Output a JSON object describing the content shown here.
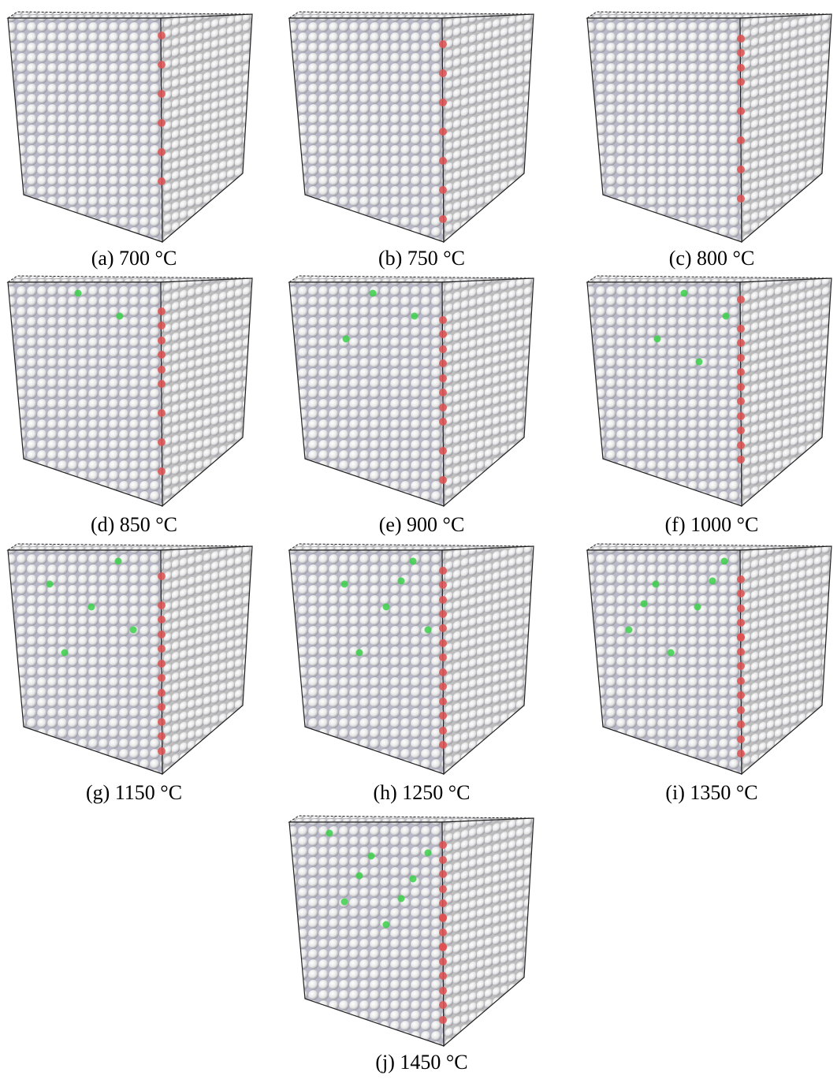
{
  "figure": {
    "panels": [
      {
        "caption": "(a) 700 °C"
      },
      {
        "caption": "(b) 750 °C"
      },
      {
        "caption": "(c) 800 °C"
      },
      {
        "caption": "(d) 850 °C"
      },
      {
        "caption": "(e) 900 °C"
      },
      {
        "caption": "(f) 1000 °C"
      },
      {
        "caption": "(g) 1150 °C"
      },
      {
        "caption": "(h) 1250 °C"
      },
      {
        "caption": "(i) 1350 °C"
      },
      {
        "caption": "(j) 1450 °C"
      }
    ]
  }
}
